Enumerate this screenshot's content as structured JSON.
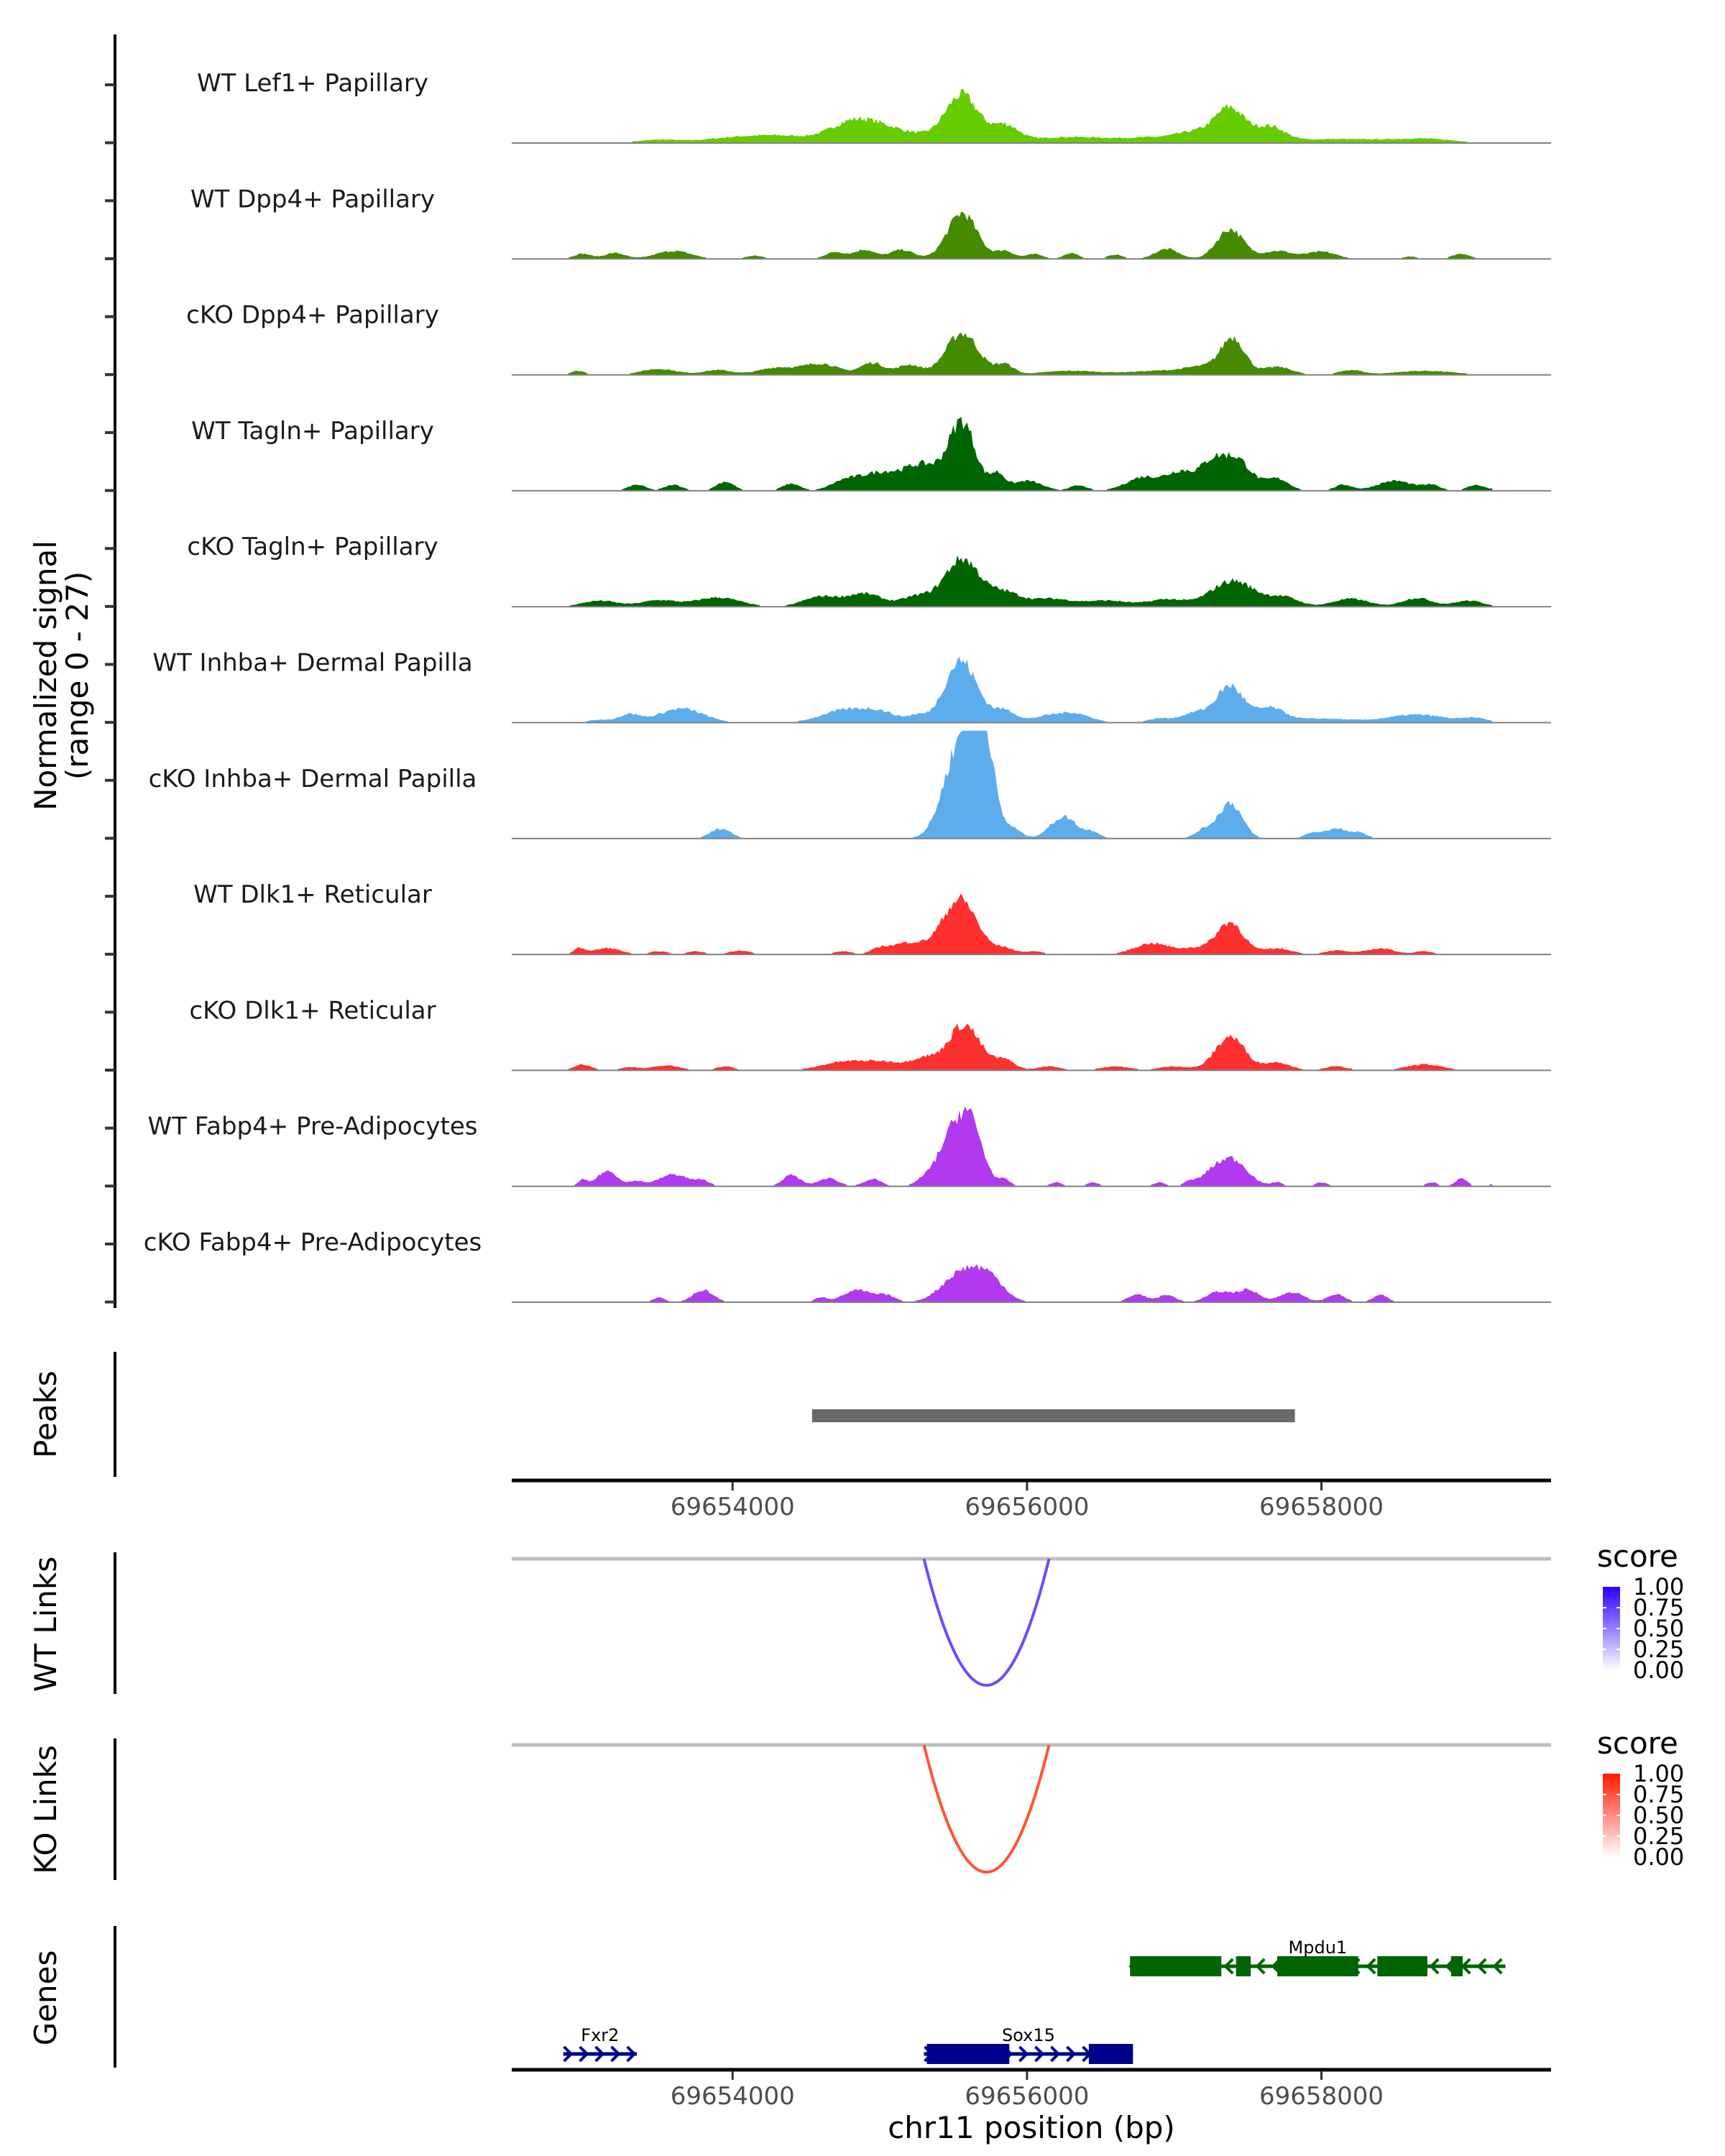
{
  "chart_data": {
    "type": "area",
    "title": "",
    "chromosome": "chr11",
    "xlabel": "chr11 position (bp)",
    "ylabel": "Normalized signal",
    "ylabel_sub": "(range 0 - 27)",
    "xlim": [
      69652500,
      69659560
    ],
    "ylim": [
      0,
      27
    ],
    "x_ticks": [
      69654000,
      69656000,
      69658000
    ],
    "x_tick_labels": [
      "69654000",
      "69656000",
      "69658000"
    ],
    "coverage_tracks": [
      {
        "name": "WT Lef1+ Papillary",
        "color": "#66CC00",
        "peaks": [
          [
            69653500,
            0.8,
            150
          ],
          [
            69654000,
            1.2,
            200
          ],
          [
            69654350,
            1.6,
            200
          ],
          [
            69654800,
            4.5,
            150
          ],
          [
            69655000,
            2.5,
            150
          ],
          [
            69655250,
            1.8,
            200
          ],
          [
            69655560,
            11.5,
            110
          ],
          [
            69655850,
            4.0,
            90
          ],
          [
            69656300,
            1.5,
            300
          ],
          [
            69656900,
            1.2,
            200
          ],
          [
            69657150,
            2.2,
            120
          ],
          [
            69657380,
            8.5,
            100
          ],
          [
            69657650,
            3.8,
            100
          ],
          [
            69658100,
            1.0,
            300
          ],
          [
            69658700,
            1.0,
            200
          ]
        ]
      },
      {
        "name": "WT Dpp4+ Papillary",
        "color": "#458B00",
        "peaks": [
          [
            69652980,
            1.3,
            60
          ],
          [
            69653200,
            1.5,
            70
          ],
          [
            69653600,
            2.0,
            120
          ],
          [
            69654150,
            0.8,
            60
          ],
          [
            69654700,
            1.7,
            70
          ],
          [
            69654900,
            2.3,
            70
          ],
          [
            69655150,
            2.3,
            80
          ],
          [
            69655560,
            11.5,
            100
          ],
          [
            69655850,
            2.0,
            60
          ],
          [
            69656050,
            1.2,
            60
          ],
          [
            69656300,
            1.5,
            50
          ],
          [
            69656600,
            1.1,
            50
          ],
          [
            69656950,
            2.5,
            80
          ],
          [
            69657380,
            7.5,
            90
          ],
          [
            69657700,
            2.0,
            100
          ],
          [
            69658000,
            1.8,
            100
          ],
          [
            69658600,
            0.6,
            50
          ],
          [
            69658950,
            1.3,
            60
          ]
        ]
      },
      {
        "name": "cKO Dpp4+ Papillary",
        "color": "#458B00",
        "peaks": [
          [
            69652950,
            1.0,
            50
          ],
          [
            69653500,
            1.5,
            120
          ],
          [
            69653900,
            1.2,
            100
          ],
          [
            69654300,
            1.8,
            120
          ],
          [
            69654600,
            2.8,
            120
          ],
          [
            69654950,
            3.0,
            80
          ],
          [
            69655200,
            2.5,
            80
          ],
          [
            69655560,
            10.5,
            110
          ],
          [
            69655850,
            2.5,
            60
          ],
          [
            69656300,
            1.0,
            200
          ],
          [
            69656900,
            1.0,
            200
          ],
          [
            69657200,
            1.8,
            120
          ],
          [
            69657400,
            9.0,
            80
          ],
          [
            69657700,
            2.0,
            100
          ],
          [
            69658200,
            1.2,
            80
          ],
          [
            69658700,
            1.0,
            200
          ]
        ]
      },
      {
        "name": "WT Tagln+ Papillary",
        "color": "#006400",
        "peaks": [
          [
            69653350,
            1.5,
            60
          ],
          [
            69653600,
            1.5,
            60
          ],
          [
            69653950,
            2.3,
            60
          ],
          [
            69654400,
            1.8,
            60
          ],
          [
            69654750,
            1.8,
            90
          ],
          [
            69655000,
            4.5,
            150
          ],
          [
            69655300,
            6.0,
            120
          ],
          [
            69655560,
            17.0,
            90
          ],
          [
            69655800,
            4.0,
            50
          ],
          [
            69656000,
            2.5,
            100
          ],
          [
            69656350,
            1.3,
            60
          ],
          [
            69656800,
            3.5,
            120
          ],
          [
            69657050,
            4.5,
            90
          ],
          [
            69657250,
            6.0,
            80
          ],
          [
            69657420,
            8.0,
            100
          ],
          [
            69657700,
            3.0,
            80
          ],
          [
            69658150,
            1.5,
            60
          ],
          [
            69658500,
            2.5,
            120
          ],
          [
            69658750,
            1.3,
            60
          ],
          [
            69659050,
            1.5,
            60
          ],
          [
            69659220,
            3.0,
            30
          ]
        ]
      },
      {
        "name": "cKO Tagln+ Papillary",
        "color": "#006400",
        "peaks": [
          [
            69653100,
            1.5,
            120
          ],
          [
            69653500,
            1.6,
            120
          ],
          [
            69653900,
            2.3,
            150
          ],
          [
            69654600,
            2.5,
            120
          ],
          [
            69654900,
            3.2,
            120
          ],
          [
            69655250,
            2.5,
            100
          ],
          [
            69655560,
            12.0,
            120
          ],
          [
            69655850,
            3.2,
            100
          ],
          [
            69656150,
            2.0,
            150
          ],
          [
            69656550,
            1.5,
            150
          ],
          [
            69656950,
            1.8,
            120
          ],
          [
            69657400,
            6.5,
            150
          ],
          [
            69657750,
            2.2,
            100
          ],
          [
            69658200,
            2.0,
            120
          ],
          [
            69658650,
            2.2,
            100
          ],
          [
            69659000,
            1.5,
            100
          ]
        ]
      },
      {
        "name": "WT Inhba+ Dermal Papilla",
        "color": "#5DADEC",
        "peaks": [
          [
            69653100,
            0.7,
            80
          ],
          [
            69653300,
            2.0,
            70
          ],
          [
            69653650,
            3.5,
            150
          ],
          [
            69654750,
            3.0,
            150
          ],
          [
            69655000,
            2.5,
            120
          ],
          [
            69655250,
            1.5,
            60
          ],
          [
            69655550,
            15.5,
            110
          ],
          [
            69655850,
            3.0,
            80
          ],
          [
            69656100,
            1.0,
            80
          ],
          [
            69656300,
            2.5,
            120
          ],
          [
            69656900,
            1.0,
            80
          ],
          [
            69657150,
            2.5,
            100
          ],
          [
            69657380,
            9.0,
            90
          ],
          [
            69657650,
            3.5,
            100
          ],
          [
            69658000,
            1.0,
            200
          ],
          [
            69658650,
            2.0,
            200
          ],
          [
            69659050,
            1.0,
            80
          ]
        ]
      },
      {
        "name": "cKO Inhba+ Dermal Papilla",
        "color": "#5DADEC",
        "peaks": [
          [
            69653920,
            2.5,
            70
          ],
          [
            69655550,
            24.0,
            110
          ],
          [
            69655700,
            25.0,
            70
          ],
          [
            69655900,
            2.5,
            60
          ],
          [
            69656250,
            5.5,
            90
          ],
          [
            69656450,
            1.5,
            50
          ],
          [
            69657200,
            2.0,
            60
          ],
          [
            69657380,
            9.0,
            80
          ],
          [
            69657950,
            1.5,
            60
          ],
          [
            69658100,
            2.5,
            60
          ],
          [
            69658250,
            1.5,
            60
          ],
          [
            69659230,
            1.5,
            15
          ]
        ]
      },
      {
        "name": "WT Dlk1+ Reticular",
        "color": "#FF3030",
        "peaks": [
          [
            69652960,
            1.5,
            40
          ],
          [
            69653150,
            1.6,
            90
          ],
          [
            69653500,
            0.8,
            60
          ],
          [
            69653750,
            0.8,
            60
          ],
          [
            69654050,
            1.0,
            70
          ],
          [
            69654750,
            0.8,
            60
          ],
          [
            69655000,
            1.2,
            60
          ],
          [
            69655200,
            3.0,
            120
          ],
          [
            69655450,
            2.5,
            90
          ],
          [
            69655560,
            12.5,
            110
          ],
          [
            69655850,
            1.5,
            70
          ],
          [
            69656050,
            0.8,
            60
          ],
          [
            69656850,
            2.8,
            120
          ],
          [
            69657150,
            1.5,
            100
          ],
          [
            69657380,
            8.0,
            90
          ],
          [
            69657700,
            1.5,
            100
          ],
          [
            69658100,
            1.0,
            80
          ],
          [
            69658400,
            1.5,
            100
          ],
          [
            69658700,
            0.8,
            60
          ]
        ]
      },
      {
        "name": "cKO Dlk1+ Reticular",
        "color": "#FF3030",
        "peaks": [
          [
            69652980,
            1.5,
            60
          ],
          [
            69653300,
            0.8,
            60
          ],
          [
            69653550,
            1.2,
            100
          ],
          [
            69653950,
            1.0,
            60
          ],
          [
            69654750,
            2.0,
            150
          ],
          [
            69655050,
            2.0,
            150
          ],
          [
            69655300,
            2.5,
            80
          ],
          [
            69655570,
            11.5,
            110
          ],
          [
            69655850,
            2.5,
            70
          ],
          [
            69656150,
            1.0,
            80
          ],
          [
            69656600,
            1.0,
            100
          ],
          [
            69657000,
            1.0,
            100
          ],
          [
            69657380,
            8.5,
            100
          ],
          [
            69657700,
            2.0,
            90
          ],
          [
            69658100,
            1.0,
            80
          ],
          [
            69658700,
            1.5,
            120
          ]
        ]
      },
      {
        "name": "WT Fabp4+ Pre-Adipocytes",
        "color": "#B23AEE",
        "peaks": [
          [
            69652980,
            1.5,
            30
          ],
          [
            69653150,
            3.8,
            70
          ],
          [
            69653350,
            1.2,
            50
          ],
          [
            69653600,
            3.0,
            100
          ],
          [
            69653800,
            1.2,
            50
          ],
          [
            69654400,
            2.8,
            60
          ],
          [
            69654650,
            2.0,
            70
          ],
          [
            69654950,
            1.8,
            60
          ],
          [
            69655300,
            1.5,
            60
          ],
          [
            69655450,
            8.0,
            80
          ],
          [
            69655600,
            17.5,
            90
          ],
          [
            69655850,
            1.5,
            40
          ],
          [
            69656200,
            1.0,
            40
          ],
          [
            69656450,
            1.0,
            40
          ],
          [
            69656900,
            1.0,
            40
          ],
          [
            69657100,
            1.0,
            40
          ],
          [
            69657250,
            2.5,
            80
          ],
          [
            69657400,
            6.5,
            100
          ],
          [
            69657700,
            1.0,
            40
          ],
          [
            69658000,
            1.0,
            40
          ],
          [
            69658750,
            1.0,
            40
          ],
          [
            69658950,
            2.0,
            40
          ],
          [
            69659200,
            1.0,
            40
          ]
        ]
      },
      {
        "name": "cKO Fabp4+ Pre-Adipocytes",
        "color": "#B23AEE",
        "peaks": [
          [
            69653500,
            1.2,
            40
          ],
          [
            69653800,
            3.0,
            70
          ],
          [
            69654600,
            1.2,
            40
          ],
          [
            69654850,
            3.0,
            100
          ],
          [
            69655050,
            1.5,
            60
          ],
          [
            69655560,
            7.5,
            130
          ],
          [
            69655750,
            5.0,
            100
          ],
          [
            69656750,
            2.0,
            60
          ],
          [
            69656950,
            1.8,
            60
          ],
          [
            69657300,
            2.5,
            80
          ],
          [
            69657500,
            3.0,
            80
          ],
          [
            69657800,
            2.5,
            80
          ],
          [
            69658100,
            2.0,
            60
          ],
          [
            69658400,
            1.8,
            50
          ]
        ]
      }
    ],
    "peaks_track": {
      "label": "Peaks",
      "regions": [
        [
          69654540,
          69657820
        ]
      ],
      "color": "#696969"
    },
    "links_tracks": [
      {
        "label": "WT Links",
        "color": "#6A4BFF",
        "links": [
          {
            "start": 69655300,
            "end": 69656150,
            "score": 0.8
          }
        ],
        "legend": {
          "title": "score",
          "low_color": "#FFFFFF",
          "high_color": "#2A00FF",
          "ticks": [
            "1.00",
            "0.75",
            "0.50",
            "0.25",
            "0.00"
          ]
        }
      },
      {
        "label": "KO Links",
        "color": "#FF5533",
        "links": [
          {
            "start": 69655300,
            "end": 69656150,
            "score": 0.8
          }
        ],
        "legend": {
          "title": "score",
          "low_color": "#FFFFFF",
          "high_color": "#FF1A00",
          "ticks": [
            "1.00",
            "0.75",
            "0.50",
            "0.25",
            "0.00"
          ]
        }
      }
    ],
    "genes_track": {
      "label": "Genes",
      "genes": [
        {
          "name": "Mpdu1",
          "strand": "-",
          "start": 69656700,
          "end": 69659250,
          "row": 0,
          "color": "#006400",
          "exons": [
            [
              69656700,
              69657320
            ],
            [
              69657420,
              69657520
            ],
            [
              69657700,
              69658250
            ],
            [
              69658380,
              69658720
            ],
            [
              69658880,
              69658960
            ]
          ]
        },
        {
          "name": "Fxr2",
          "strand": "+",
          "start": 69652850,
          "end": 69653350,
          "row": 1,
          "color": "#00008B",
          "exons": []
        },
        {
          "name": "Sox15",
          "strand": "+",
          "start": 69655300,
          "end": 69656720,
          "row": 1,
          "color": "#00008B",
          "exons": [
            [
              69655320,
              69655880
            ],
            [
              69656420,
              69656720
            ]
          ]
        }
      ]
    }
  }
}
